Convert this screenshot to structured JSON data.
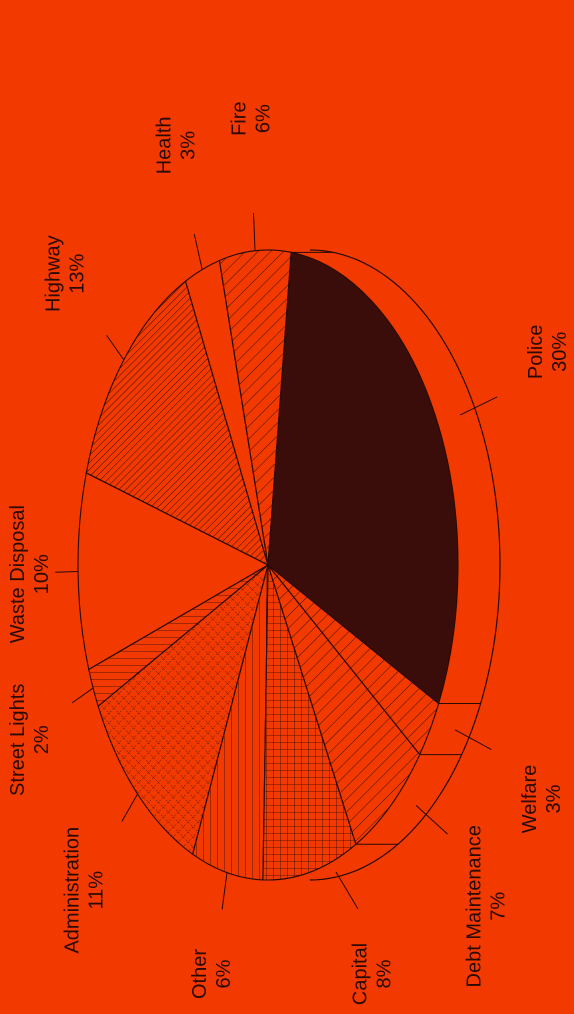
{
  "colors": {
    "background": "#F23A00",
    "ink": "#2a0a04",
    "police": "#3a0d0a"
  },
  "chart_data": {
    "type": "pie",
    "style": "3d-tilted, rotated 90 degrees counter-clockwise, hatched slices",
    "slices": [
      {
        "label": "Police",
        "value": 30,
        "value_label": "30%",
        "pattern": "solid-dark"
      },
      {
        "label": "Welfare",
        "value": 3,
        "value_label": "3%",
        "pattern": "diagonal"
      },
      {
        "label": "Debt Maintenance",
        "value": 7,
        "value_label": "7%",
        "pattern": "diagonal"
      },
      {
        "label": "Capital",
        "value": 8,
        "value_label": "8%",
        "pattern": "grid"
      },
      {
        "label": "Other",
        "value": 6,
        "value_label": "6%",
        "pattern": "vertical"
      },
      {
        "label": "Administration",
        "value": 11,
        "value_label": "11%",
        "pattern": "crosshatch"
      },
      {
        "label": "Street Lights",
        "value": 2,
        "value_label": "2%",
        "pattern": "horizontal"
      },
      {
        "label": "Waste Disposal",
        "value": 10,
        "value_label": "10%",
        "pattern": "plain"
      },
      {
        "label": "Highway",
        "value": 13,
        "value_label": "13%",
        "pattern": "diagonal-dense"
      },
      {
        "label": "Health",
        "value": 3,
        "value_label": "3%",
        "pattern": "plain"
      },
      {
        "label": "Fire",
        "value": 6,
        "value_label": "6%",
        "pattern": "diagonal"
      }
    ]
  }
}
